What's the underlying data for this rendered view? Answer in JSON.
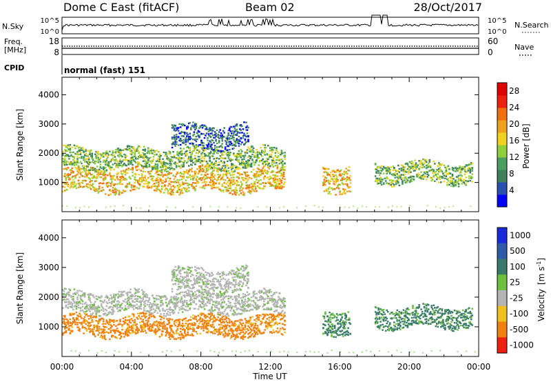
{
  "header": {
    "station": "Dome C East (fitACF)",
    "beam": "Beam 02",
    "date": "28/Oct/2017"
  },
  "strips": {
    "nsky_label": "N.Sky",
    "nsky_ticks": [
      "10^5",
      "10^0"
    ],
    "nsearch_label": "N.Search",
    "freq_label_1": "Freq.",
    "freq_label_2": "[MHz]",
    "freq_ticks": [
      "18",
      "8"
    ],
    "nave_label": "Nave",
    "nave_ticks": [
      "60",
      "0"
    ],
    "cpid_label": "CPID",
    "cpid_value": "normal (fast) 151"
  },
  "colors": {
    "power_scale": [
      "#0000ff",
      "#2a4fb0",
      "#3f7f5a",
      "#4a9e60",
      "#8fd03a",
      "#f0d020",
      "#f0a020",
      "#f07010",
      "#f02010",
      "#e00000"
    ],
    "velocity_scale": [
      "#1a2ad8",
      "#2e5aa8",
      "#3a7a6a",
      "#6cc040",
      "#b4b4b4",
      "#f0c020",
      "#f08010",
      "#f02010"
    ]
  },
  "chart_data": [
    {
      "type": "heatmap",
      "title": "",
      "xlabel": "Time UT",
      "ylabel": "Slant Range [km]",
      "xticks": [
        "00:00",
        "04:00",
        "08:00",
        "12:00",
        "16:00",
        "20:00",
        "00:00"
      ],
      "yticks": [
        "1000",
        "2000",
        "3000",
        "4000"
      ],
      "xlim_hours": [
        0,
        24
      ],
      "ylim_km": [
        0,
        4600
      ],
      "colorbar": {
        "label": "Power [dB]",
        "ticks": [
          "4",
          "8",
          "12",
          "16",
          "20",
          "24",
          "28"
        ],
        "range": [
          0,
          30
        ]
      },
      "echo_regions": [
        {
          "t0": 0.0,
          "t1": 12.8,
          "r0": 700,
          "r1": 1500,
          "value": "high"
        },
        {
          "t0": 0.0,
          "t1": 12.8,
          "r0": 1500,
          "r1": 2200,
          "value": "medium"
        },
        {
          "t0": 6.3,
          "t1": 10.7,
          "r0": 2200,
          "r1": 3000,
          "value": "low"
        },
        {
          "t0": 15.0,
          "t1": 16.6,
          "r0": 700,
          "r1": 1600,
          "value": "high"
        },
        {
          "t0": 18.0,
          "t1": 23.6,
          "r0": 1000,
          "r1": 1700,
          "value": "medium"
        }
      ]
    },
    {
      "type": "heatmap",
      "title": "",
      "xlabel": "Time UT",
      "ylabel": "Slant Range [km]",
      "xticks": [
        "00:00",
        "04:00",
        "08:00",
        "12:00",
        "16:00",
        "20:00",
        "00:00"
      ],
      "yticks": [
        "1000",
        "2000",
        "3000",
        "4000"
      ],
      "xlim_hours": [
        0,
        24
      ],
      "ylim_km": [
        0,
        4600
      ],
      "colorbar": {
        "label": "Velocity [m s^-1]",
        "label_main": "Velocity",
        "label_units": "[m s",
        "label_exp": "-1",
        "label_close": "]",
        "ticks": [
          "1000",
          "500",
          "100",
          "25",
          "-25",
          "-100",
          "-500",
          "-1000"
        ]
      },
      "echo_regions": [
        {
          "t0": 0.0,
          "t1": 12.8,
          "r0": 700,
          "r1": 1400,
          "value": "-100 to -500"
        },
        {
          "t0": 0.0,
          "t1": 12.8,
          "r0": 1500,
          "r1": 2200,
          "value": "-25 to 25"
        },
        {
          "t0": 6.3,
          "t1": 10.7,
          "r0": 2200,
          "r1": 3000,
          "value": "-25 to 25"
        },
        {
          "t0": 15.0,
          "t1": 16.6,
          "r0": 800,
          "r1": 1600,
          "value": "100 to 500"
        },
        {
          "t0": 18.0,
          "t1": 23.6,
          "r0": 1000,
          "r1": 1700,
          "value": "100 to 500"
        }
      ]
    }
  ]
}
